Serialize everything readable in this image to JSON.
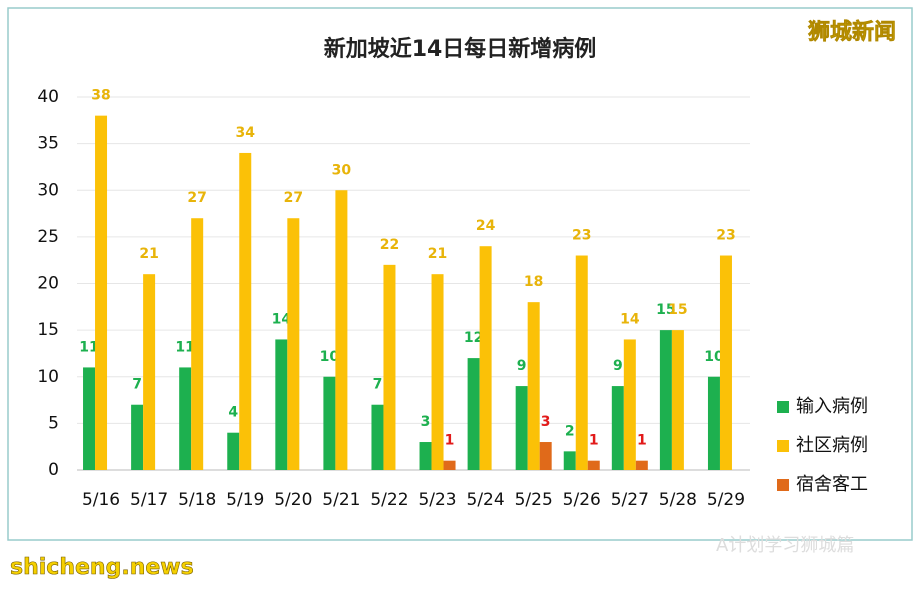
{
  "chart_data": {
    "type": "bar",
    "title": "新加坡近14日每日新增病例",
    "categories": [
      "5/16",
      "5/17",
      "5/18",
      "5/19",
      "5/20",
      "5/21",
      "5/22",
      "5/23",
      "5/24",
      "5/25",
      "5/26",
      "5/27",
      "5/28",
      "5/29"
    ],
    "series": [
      {
        "name": "输入病例",
        "color": "#1db04f",
        "label_color": "#1db04f",
        "values": [
          11,
          7,
          11,
          4,
          14,
          10,
          7,
          3,
          12,
          9,
          2,
          9,
          15,
          10
        ]
      },
      {
        "name": "社区病例",
        "color": "#fbc107",
        "label_color": "#e8b40a",
        "values": [
          38,
          21,
          27,
          34,
          27,
          30,
          22,
          21,
          24,
          18,
          23,
          14,
          15,
          23
        ]
      },
      {
        "name": "宿舍客工",
        "color": "#e06a1a",
        "label_color": "#e21a1a",
        "values": [
          null,
          null,
          null,
          null,
          null,
          null,
          null,
          1,
          null,
          3,
          1,
          1,
          null,
          null
        ]
      }
    ],
    "ylim": [
      0,
      40
    ],
    "yticks": [
      0,
      5,
      10,
      15,
      20,
      25,
      30,
      35,
      40
    ],
    "grid": true,
    "legend": "right",
    "watermarks": {
      "brand": "狮城新闻",
      "site": "shicheng.news",
      "account": "A计划学习狮城篇"
    }
  }
}
